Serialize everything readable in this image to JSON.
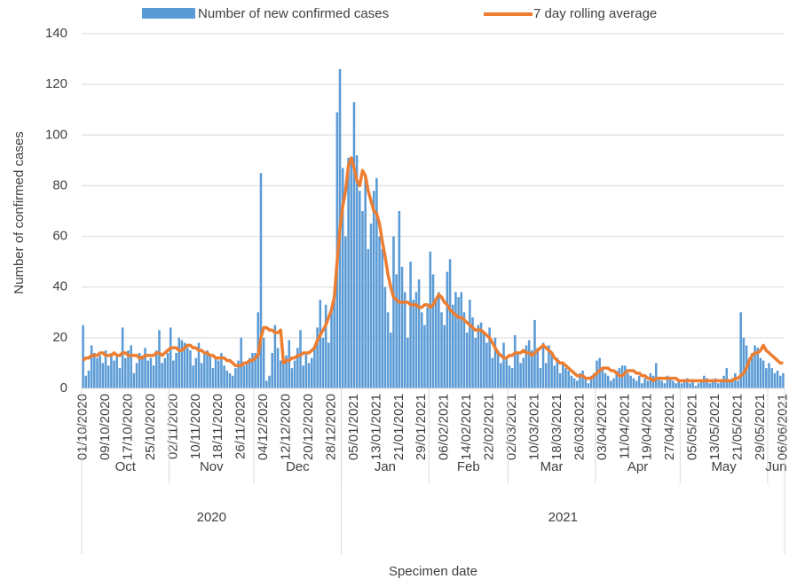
{
  "chart_data": {
    "type": "bar-line",
    "y_label": "Number of confirmed cases",
    "x_label": "Specimen date",
    "ylim": [
      0,
      140
    ],
    "yticks": [
      0,
      20,
      40,
      60,
      80,
      100,
      120,
      140
    ],
    "grid": true,
    "legend": "top",
    "categories": [
      "01/10/2020",
      null,
      null,
      null,
      null,
      null,
      null,
      null,
      "09/10/2020",
      null,
      null,
      null,
      null,
      null,
      null,
      null,
      "17/10/2020",
      null,
      null,
      null,
      null,
      null,
      null,
      null,
      "25/10/2020",
      null,
      null,
      null,
      null,
      null,
      null,
      null,
      "02/11/2020",
      null,
      null,
      null,
      null,
      null,
      null,
      null,
      "10/11/2020",
      null,
      null,
      null,
      null,
      null,
      null,
      null,
      "18/11/2020",
      null,
      null,
      null,
      null,
      null,
      null,
      null,
      "26/11/2020",
      null,
      null,
      null,
      null,
      null,
      null,
      null,
      "04/12/2020",
      null,
      null,
      null,
      null,
      null,
      null,
      null,
      "12/12/2020",
      null,
      null,
      null,
      null,
      null,
      null,
      null,
      "20/12/2020",
      null,
      null,
      null,
      null,
      null,
      null,
      null,
      "28/12/2020",
      null,
      null,
      null,
      null,
      null,
      null,
      null,
      "05/01/2021",
      null,
      null,
      null,
      null,
      null,
      null,
      null,
      "13/01/2021",
      null,
      null,
      null,
      null,
      null,
      null,
      null,
      "21/01/2021",
      null,
      null,
      null,
      null,
      null,
      null,
      null,
      "29/01/2021",
      null,
      null,
      null,
      null,
      null,
      null,
      null,
      "06/02/2021",
      null,
      null,
      null,
      null,
      null,
      null,
      null,
      "14/02/2021",
      null,
      null,
      null,
      null,
      null,
      null,
      null,
      "22/02/2021",
      null,
      null,
      null,
      null,
      null,
      null,
      null,
      "02/03/2021",
      null,
      null,
      null,
      null,
      null,
      null,
      null,
      "10/03/2021",
      null,
      null,
      null,
      null,
      null,
      null,
      null,
      "18/03/2021",
      null,
      null,
      null,
      null,
      null,
      null,
      null,
      "26/03/2021",
      null,
      null,
      null,
      null,
      null,
      null,
      null,
      "03/04/2021",
      null,
      null,
      null,
      null,
      null,
      null,
      null,
      "11/04/2021",
      null,
      null,
      null,
      null,
      null,
      null,
      null,
      "19/04/2021",
      null,
      null,
      null,
      null,
      null,
      null,
      null,
      "27/04/2021",
      null,
      null,
      null,
      null,
      null,
      null,
      null,
      "05/05/2021",
      null,
      null,
      null,
      null,
      null,
      null,
      null,
      "13/05/2021",
      null,
      null,
      null,
      null,
      null,
      null,
      null,
      "21/05/2021",
      null,
      null,
      null,
      null,
      null,
      null,
      null,
      "29/05/2021",
      null,
      null,
      null,
      null,
      null,
      null,
      null,
      "06/06/2021"
    ],
    "months": [
      "Oct",
      "Nov",
      "Dec",
      "Jan",
      "Feb",
      "Mar",
      "Apr",
      "May",
      "Jun"
    ],
    "years": [
      "2020",
      "2021"
    ],
    "series": [
      {
        "name": "Number of new confirmed cases",
        "type": "bar",
        "color": "#5b9bd5",
        "values": [
          25,
          5,
          7,
          17,
          14,
          12,
          13,
          10,
          15,
          9,
          14,
          11,
          13,
          8,
          24,
          12,
          15,
          17,
          6,
          10,
          14,
          13,
          16,
          11,
          12,
          9,
          15,
          23,
          10,
          12,
          14,
          24,
          11,
          14,
          20,
          19,
          18,
          16,
          15,
          9,
          12,
          18,
          10,
          14,
          15,
          13,
          8,
          12,
          11,
          14,
          9,
          7,
          6,
          5,
          8,
          11,
          20,
          9,
          10,
          12,
          14,
          14,
          30,
          85,
          20,
          3,
          5,
          14,
          25,
          16,
          11,
          10,
          13,
          19,
          8,
          11,
          16,
          23,
          9,
          14,
          10,
          12,
          17,
          24,
          35,
          20,
          33,
          18,
          32,
          37,
          109,
          126,
          87,
          60,
          91,
          90,
          113,
          92,
          78,
          70,
          84,
          55,
          65,
          78,
          83,
          60,
          55,
          40,
          30,
          22,
          60,
          45,
          70,
          48,
          38,
          20,
          50,
          35,
          38,
          43,
          30,
          25,
          32,
          54,
          45,
          35,
          38,
          30,
          25,
          46,
          51,
          33,
          38,
          36,
          38,
          30,
          22,
          35,
          28,
          20,
          25,
          26,
          22,
          18,
          24,
          12,
          20,
          15,
          10,
          18,
          12,
          9,
          8,
          21,
          14,
          10,
          12,
          17,
          19,
          15,
          27,
          16,
          8,
          18,
          10,
          17,
          14,
          9,
          12,
          6,
          10,
          8,
          7,
          5,
          4,
          3,
          6,
          7,
          4,
          2,
          5,
          6,
          11,
          12,
          8,
          6,
          5,
          3,
          4,
          7,
          8,
          9,
          9,
          6,
          5,
          4,
          3,
          5,
          2,
          4,
          3,
          6,
          5,
          10,
          4,
          3,
          2,
          5,
          4,
          3,
          2,
          3,
          2,
          3,
          4,
          2,
          3,
          1,
          2,
          3,
          5,
          4,
          2,
          3,
          4,
          2,
          3,
          5,
          8,
          3,
          4,
          6,
          3,
          30,
          20,
          17,
          12,
          14,
          17,
          16,
          12,
          11,
          8,
          10,
          8,
          6,
          7,
          5,
          6
        ]
      },
      {
        "name": "7 day rolling average",
        "type": "line",
        "color": "#ed7d31",
        "values": [
          11,
          12,
          12,
          13,
          13,
          13,
          14,
          14,
          13,
          13,
          13,
          14,
          13,
          13,
          14,
          14,
          13,
          13,
          13,
          13,
          12,
          12,
          13,
          13,
          13,
          13,
          14,
          14,
          13,
          14,
          15,
          16,
          16,
          16,
          15,
          15,
          16,
          17,
          17,
          16,
          16,
          15,
          15,
          14,
          14,
          13,
          13,
          12,
          12,
          12,
          12,
          11,
          11,
          10,
          9,
          9,
          9,
          10,
          10,
          11,
          11,
          12,
          13,
          20,
          24,
          24,
          23,
          23,
          22,
          22,
          23,
          10,
          11,
          11,
          12,
          12,
          13,
          13,
          14,
          14,
          14,
          15,
          16,
          19,
          21,
          23,
          25,
          28,
          31,
          36,
          50,
          63,
          72,
          78,
          88,
          91,
          87,
          82,
          80,
          86,
          84,
          78,
          74,
          70,
          69,
          65,
          58,
          52,
          45,
          40,
          36,
          35,
          34,
          34,
          34,
          34,
          33,
          33,
          33,
          32,
          32,
          33,
          33,
          32,
          33,
          35,
          37,
          36,
          34,
          33,
          31,
          30,
          29,
          28,
          28,
          27,
          26,
          25,
          24,
          23,
          23,
          23,
          22,
          21,
          20,
          18,
          16,
          14,
          13,
          12,
          12,
          13,
          13,
          14,
          14,
          14,
          15,
          14,
          14,
          13,
          14,
          15,
          16,
          17,
          16,
          15,
          14,
          12,
          11,
          10,
          10,
          9,
          8,
          7,
          6,
          5,
          5,
          5,
          4,
          4,
          4,
          5,
          6,
          7,
          8,
          8,
          8,
          7,
          7,
          6,
          5,
          5,
          6,
          7,
          7,
          7,
          6,
          6,
          5,
          5,
          4,
          4,
          3,
          4,
          4,
          4,
          4,
          4,
          4,
          4,
          4,
          3,
          3,
          3,
          3,
          3,
          3,
          3,
          3,
          3,
          3,
          3,
          3,
          3,
          3,
          3,
          3,
          3,
          3,
          3,
          3,
          4,
          4,
          5,
          6,
          8,
          11,
          13,
          14,
          14,
          15,
          17,
          15,
          14,
          13,
          12,
          11,
          10,
          10
        ]
      }
    ]
  }
}
